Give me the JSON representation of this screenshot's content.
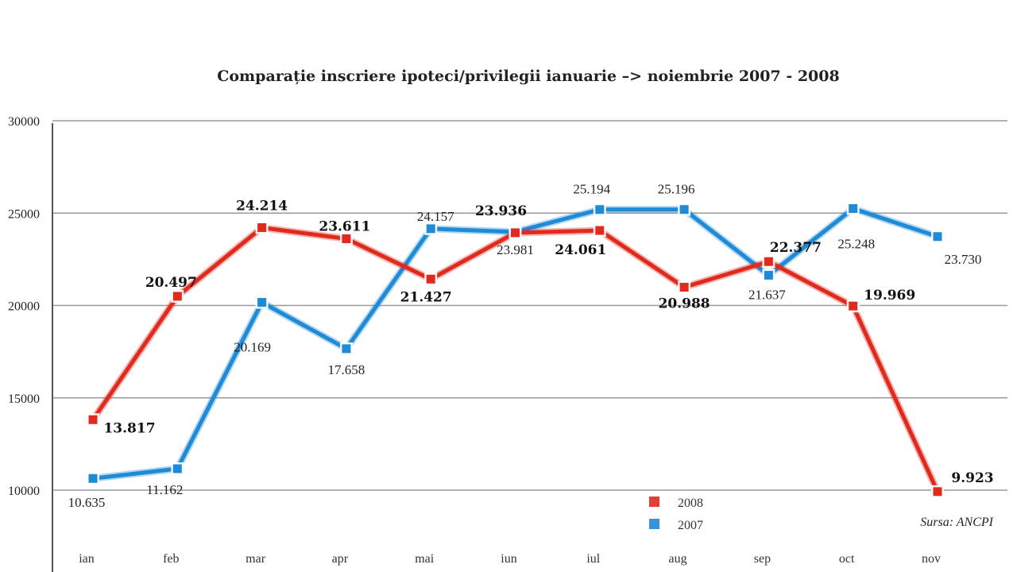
{
  "chart_data": {
    "type": "line",
    "title": "Comparație inscriere ipoteci/privilegii ianuarie –> noiembrie  2007 - 2008",
    "categories": [
      "ian",
      "feb",
      "mar",
      "apr",
      "mai",
      "iun",
      "iul",
      "aug",
      "sep",
      "oct",
      "nov"
    ],
    "yticks": [
      "10000",
      "15000",
      "20000",
      "25000",
      "30000"
    ],
    "ylim": [
      5000,
      30000
    ],
    "grid": true,
    "legend_position": "bottom-center",
    "series": [
      {
        "name": "2008",
        "color": "#e02a1e",
        "values": [
          13817,
          20497,
          24214,
          23611,
          21427,
          23936,
          24061,
          20988,
          22377,
          19969,
          9923
        ],
        "labels": [
          "13.817",
          "20.497",
          "24.214",
          "23.611",
          "21.427",
          "23.936",
          "24.061",
          "20.988",
          "22.377",
          "19.969",
          "9.923"
        ]
      },
      {
        "name": "2007",
        "color": "#1f8ad6",
        "values": [
          10635,
          11162,
          20169,
          17658,
          24157,
          23981,
          25194,
          25196,
          21637,
          25248,
          23730
        ],
        "labels": [
          "10.635",
          "11.162",
          "20.169",
          "17.658",
          "24.157",
          "23.981",
          "25.194",
          "25.196",
          "21.637",
          "25.248",
          "23.730"
        ]
      }
    ],
    "source": "Sursa: ANCPI"
  }
}
